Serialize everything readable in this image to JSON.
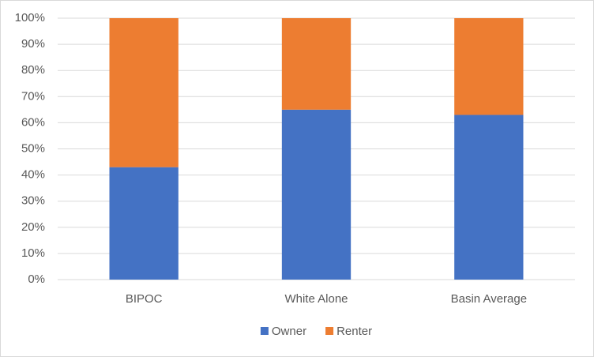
{
  "chart_data": {
    "type": "stacked_bar",
    "categories": [
      "BIPOC",
      "White Alone",
      "Basin Average"
    ],
    "series": [
      {
        "name": "Owner",
        "color": "#4472c4",
        "values": [
          43,
          65,
          63
        ]
      },
      {
        "name": "Renter",
        "color": "#ed7d31",
        "values": [
          57,
          35,
          37
        ]
      }
    ],
    "ylim": [
      0,
      100
    ],
    "yticks": [
      {
        "value": 0,
        "label": "0%"
      },
      {
        "value": 10,
        "label": "10%"
      },
      {
        "value": 20,
        "label": "20%"
      },
      {
        "value": 30,
        "label": "30%"
      },
      {
        "value": 40,
        "label": "40%"
      },
      {
        "value": 50,
        "label": "50%"
      },
      {
        "value": 60,
        "label": "60%"
      },
      {
        "value": 70,
        "label": "70%"
      },
      {
        "value": 80,
        "label": "80%"
      },
      {
        "value": 90,
        "label": "90%"
      },
      {
        "value": 100,
        "label": "100%"
      }
    ],
    "grid": true,
    "legend": "bottom"
  }
}
